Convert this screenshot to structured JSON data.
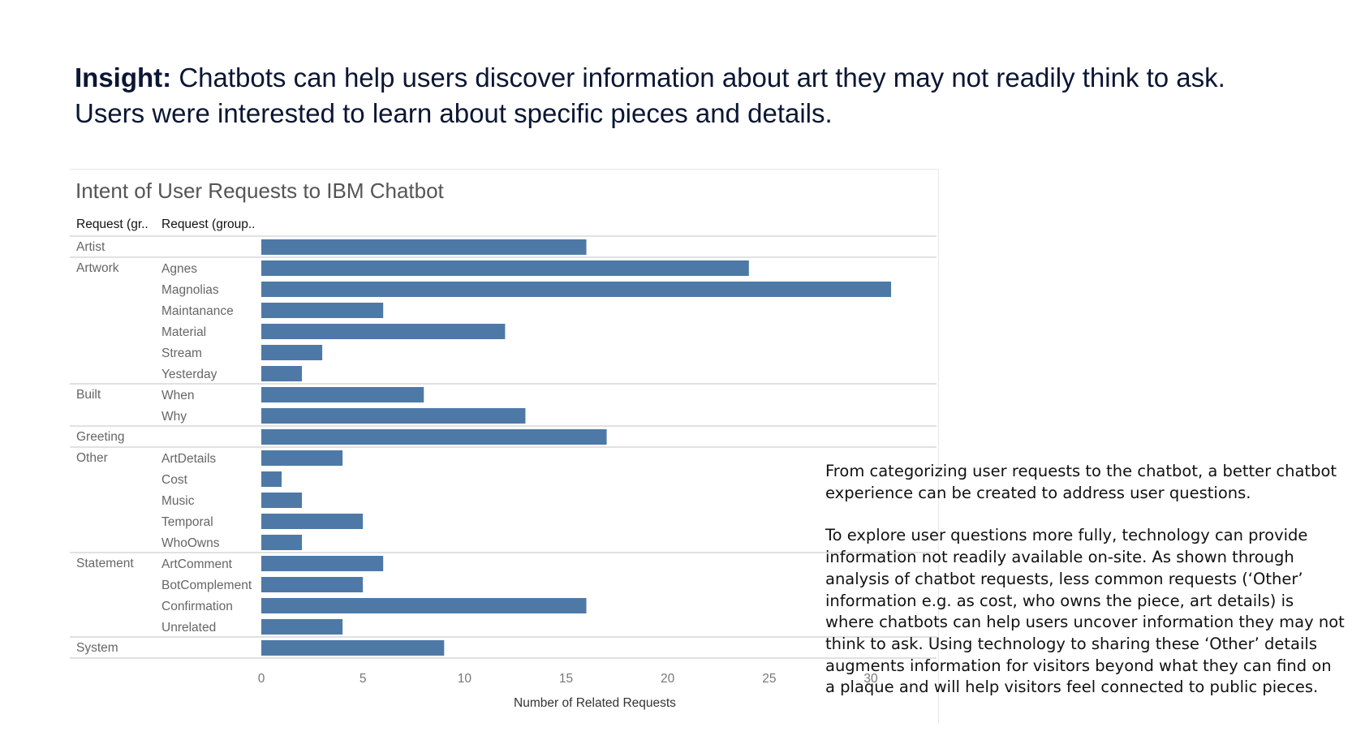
{
  "insight": {
    "label": "Insight:",
    "text": " Chatbots can help users discover information about art they may not readily think to ask. Users were interested to learn about specific pieces and details."
  },
  "note": {
    "p1": "From categorizing user requests to the chatbot, a better chatbot experience can be created to address user questions.",
    "p2": "To explore user questions more fully, technology can provide information not readily available on-site. As shown through analysis of chatbot requests, less common requests (‘Other’ information e.g. as cost, who owns the piece, art details) is where chatbots can help users uncover information they may not think to ask. Using technology to sharing these ‘Other’ details augments information for visitors beyond what they can find on a plaque and will help visitors feel connected to public pieces."
  },
  "chart_data": {
    "type": "bar",
    "orientation": "horizontal",
    "title": "Intent of User Requests to IBM Chatbot",
    "col_headers": [
      "Request (gr..",
      "Request (group.."
    ],
    "xlabel": "Number of Related Requests",
    "xlim": [
      0,
      33
    ],
    "xticks": [
      0,
      5,
      10,
      15,
      20,
      25,
      30
    ],
    "bar_color": "#4e79a7",
    "groups": [
      {
        "name": "Artist",
        "items": [
          {
            "label": "",
            "value": 16
          }
        ]
      },
      {
        "name": "Artwork",
        "items": [
          {
            "label": "Agnes",
            "value": 24
          },
          {
            "label": "Magnolias",
            "value": 31
          },
          {
            "label": "Maintanance",
            "value": 6
          },
          {
            "label": "Material",
            "value": 12
          },
          {
            "label": "Stream",
            "value": 3
          },
          {
            "label": "Yesterday",
            "value": 2
          }
        ]
      },
      {
        "name": "Built",
        "items": [
          {
            "label": "When",
            "value": 8
          },
          {
            "label": "Why",
            "value": 13
          }
        ]
      },
      {
        "name": "Greeting",
        "items": [
          {
            "label": "",
            "value": 17
          }
        ]
      },
      {
        "name": "Other",
        "items": [
          {
            "label": "ArtDetails",
            "value": 4
          },
          {
            "label": "Cost",
            "value": 1
          },
          {
            "label": "Music",
            "value": 2
          },
          {
            "label": "Temporal",
            "value": 5
          },
          {
            "label": "WhoOwns",
            "value": 2
          }
        ]
      },
      {
        "name": "Statement",
        "items": [
          {
            "label": "ArtComment",
            "value": 6
          },
          {
            "label": "BotComplement",
            "value": 5
          },
          {
            "label": "Confirmation",
            "value": 16
          },
          {
            "label": "Unrelated",
            "value": 4
          }
        ]
      },
      {
        "name": "System",
        "items": [
          {
            "label": "",
            "value": 9
          }
        ]
      }
    ]
  }
}
